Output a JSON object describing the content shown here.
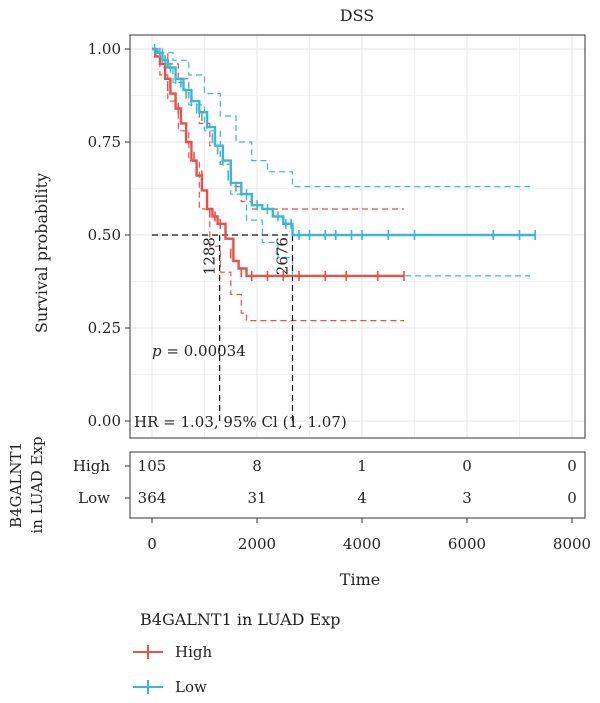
{
  "chart_data": {
    "type": "line",
    "subtype": "kaplan-meier survival curve",
    "title": "DSS",
    "xlabel": "Time",
    "ylabel": "Survival probability",
    "xlim": [
      0,
      8000
    ],
    "ylim": [
      0,
      1
    ],
    "x_ticks": [
      "0",
      "2000",
      "4000",
      "6000",
      "8000"
    ],
    "y_ticks": [
      "0.00",
      "0.25",
      "0.50",
      "0.75",
      "1.00"
    ],
    "grid": true,
    "legend": {
      "title": "B4GALNT1 in LUAD Exp",
      "position": "bottom",
      "entries": [
        "High",
        "Low"
      ]
    },
    "colors": {
      "High": "#e8514a",
      "Low": "#3bb7cf"
    },
    "series": [
      {
        "name": "High",
        "color": "#e8514a",
        "curve": [
          [
            0,
            1.0
          ],
          [
            60,
            0.98
          ],
          [
            150,
            0.96
          ],
          [
            250,
            0.92
          ],
          [
            350,
            0.88
          ],
          [
            450,
            0.84
          ],
          [
            550,
            0.8
          ],
          [
            650,
            0.75
          ],
          [
            750,
            0.7
          ],
          [
            850,
            0.66
          ],
          [
            950,
            0.62
          ],
          [
            1050,
            0.57
          ],
          [
            1150,
            0.55
          ],
          [
            1250,
            0.53
          ],
          [
            1400,
            0.49
          ],
          [
            1550,
            0.43
          ],
          [
            1650,
            0.41
          ],
          [
            1800,
            0.39
          ],
          [
            4800,
            0.39
          ]
        ],
        "ci_upper": [
          [
            0,
            1.0
          ],
          [
            150,
            0.99
          ],
          [
            300,
            0.96
          ],
          [
            500,
            0.92
          ],
          [
            700,
            0.86
          ],
          [
            900,
            0.8
          ],
          [
            1100,
            0.74
          ],
          [
            1300,
            0.69
          ],
          [
            1500,
            0.63
          ],
          [
            1700,
            0.59
          ],
          [
            1900,
            0.57
          ],
          [
            4800,
            0.57
          ]
        ],
        "ci_lower": [
          [
            0,
            1.0
          ],
          [
            150,
            0.93
          ],
          [
            300,
            0.86
          ],
          [
            500,
            0.78
          ],
          [
            700,
            0.7
          ],
          [
            900,
            0.57
          ],
          [
            1100,
            0.47
          ],
          [
            1300,
            0.4
          ],
          [
            1500,
            0.34
          ],
          [
            1700,
            0.29
          ],
          [
            1800,
            0.27
          ],
          [
            4800,
            0.27
          ]
        ],
        "censor_marks": [
          [
            300,
            0.9
          ],
          [
            500,
            0.84
          ],
          [
            650,
            0.78
          ],
          [
            800,
            0.71
          ],
          [
            950,
            0.66
          ],
          [
            1100,
            0.56
          ],
          [
            1200,
            0.55
          ],
          [
            1300,
            0.53
          ],
          [
            1500,
            0.45
          ],
          [
            1700,
            0.4
          ],
          [
            1900,
            0.39
          ],
          [
            2200,
            0.39
          ],
          [
            2500,
            0.39
          ],
          [
            2800,
            0.39
          ],
          [
            3300,
            0.39
          ],
          [
            3700,
            0.39
          ],
          [
            4300,
            0.39
          ],
          [
            4800,
            0.39
          ]
        ],
        "median_time": 1288
      },
      {
        "name": "Low",
        "color": "#3bb7cf",
        "curve": [
          [
            0,
            1.0
          ],
          [
            100,
            0.99
          ],
          [
            200,
            0.97
          ],
          [
            300,
            0.95
          ],
          [
            450,
            0.92
          ],
          [
            600,
            0.89
          ],
          [
            750,
            0.86
          ],
          [
            900,
            0.83
          ],
          [
            1050,
            0.79
          ],
          [
            1200,
            0.74
          ],
          [
            1350,
            0.7
          ],
          [
            1500,
            0.64
          ],
          [
            1700,
            0.61
          ],
          [
            1900,
            0.58
          ],
          [
            2100,
            0.57
          ],
          [
            2300,
            0.55
          ],
          [
            2500,
            0.53
          ],
          [
            2676,
            0.5
          ],
          [
            7300,
            0.5
          ]
        ],
        "ci_upper": [
          [
            0,
            1.0
          ],
          [
            200,
            0.99
          ],
          [
            400,
            0.97
          ],
          [
            700,
            0.93
          ],
          [
            1000,
            0.88
          ],
          [
            1300,
            0.82
          ],
          [
            1600,
            0.75
          ],
          [
            1900,
            0.7
          ],
          [
            2200,
            0.67
          ],
          [
            2676,
            0.63
          ],
          [
            7200,
            0.63
          ]
        ],
        "ci_lower": [
          [
            0,
            1.0
          ],
          [
            200,
            0.95
          ],
          [
            400,
            0.91
          ],
          [
            700,
            0.85
          ],
          [
            1000,
            0.78
          ],
          [
            1300,
            0.69
          ],
          [
            1500,
            0.61
          ],
          [
            1800,
            0.54
          ],
          [
            2100,
            0.48
          ],
          [
            2400,
            0.44
          ],
          [
            2676,
            0.39
          ],
          [
            7200,
            0.39
          ]
        ],
        "censor_marks": [
          [
            50,
            1.0
          ],
          [
            150,
            0.99
          ],
          [
            250,
            0.97
          ],
          [
            350,
            0.95
          ],
          [
            450,
            0.92
          ],
          [
            550,
            0.91
          ],
          [
            650,
            0.88
          ],
          [
            750,
            0.86
          ],
          [
            850,
            0.84
          ],
          [
            950,
            0.82
          ],
          [
            1050,
            0.8
          ],
          [
            1150,
            0.76
          ],
          [
            1250,
            0.73
          ],
          [
            1350,
            0.7
          ],
          [
            1450,
            0.66
          ],
          [
            1600,
            0.63
          ],
          [
            1800,
            0.61
          ],
          [
            2000,
            0.58
          ],
          [
            2200,
            0.57
          ],
          [
            2400,
            0.55
          ],
          [
            2550,
            0.53
          ],
          [
            2650,
            0.53
          ],
          [
            2800,
            0.5
          ],
          [
            3000,
            0.5
          ],
          [
            3300,
            0.5
          ],
          [
            3500,
            0.5
          ],
          [
            3800,
            0.5
          ],
          [
            4000,
            0.5
          ],
          [
            4500,
            0.5
          ],
          [
            5000,
            0.5
          ],
          [
            6500,
            0.5
          ],
          [
            7000,
            0.5
          ],
          [
            7300,
            0.5
          ]
        ],
        "median_time": 2676
      }
    ],
    "median_reference_y": 0.5,
    "median_labels": [
      "1288",
      "2676"
    ],
    "annotations": {
      "p_prefix": "p",
      "p_value": " = 0.00034",
      "hr": "HR = 1.03, 95% Cl (1, 1.07)"
    },
    "risk_table": {
      "title_line1": "B4GALNT1",
      "title_line2": "in LUAD Exp",
      "times": [
        0,
        2000,
        4000,
        6000,
        8000
      ],
      "rows": [
        {
          "label": "High",
          "color": "#e8514a",
          "values": [
            "105",
            "8",
            "1",
            "0",
            "0"
          ]
        },
        {
          "label": "Low",
          "color": "#3bb7cf",
          "values": [
            "364",
            "31",
            "4",
            "3",
            "0"
          ]
        }
      ]
    }
  }
}
